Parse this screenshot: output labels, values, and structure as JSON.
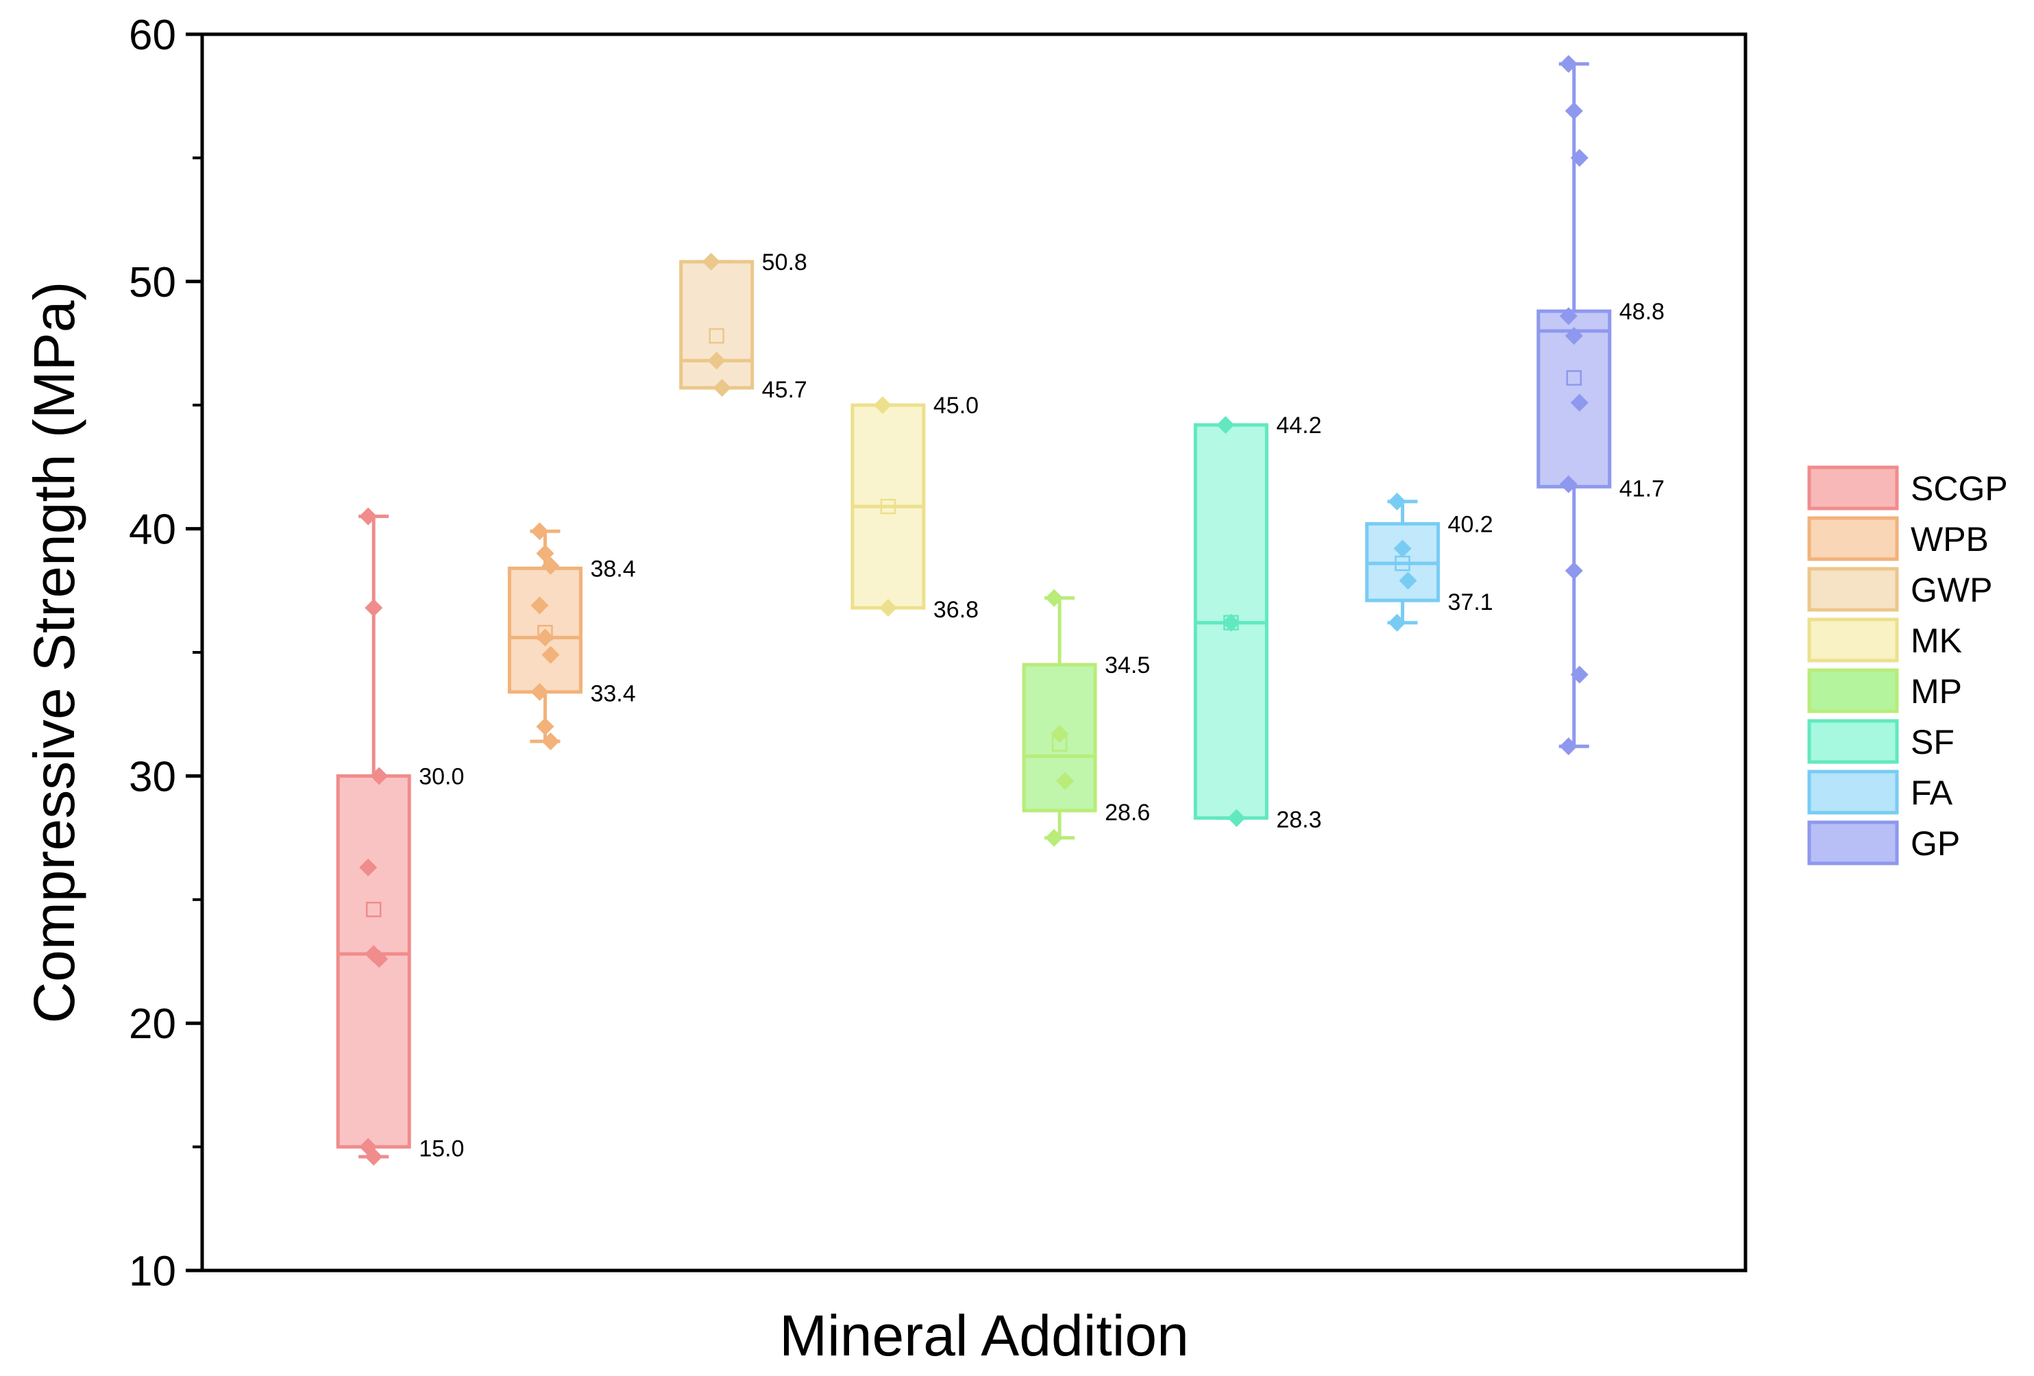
{
  "chart_data": {
    "type": "box",
    "title": "",
    "xlabel": "Mineral Addition",
    "ylabel": "Compressive Strength (MPa)",
    "ylim": [
      10,
      60
    ],
    "yticks": [
      10,
      20,
      30,
      40,
      50,
      60
    ],
    "yticks_minor": [
      15,
      25,
      35,
      45,
      55
    ],
    "grid": false,
    "legend_position": "right",
    "series": [
      {
        "name": "SCGP",
        "color": "#f08c8c",
        "fill": "#f9b8b8",
        "q1": 15.0,
        "q3": 30.0,
        "median": 22.8,
        "mean": 24.6,
        "whisker_low": 14.6,
        "whisker_high": 40.5,
        "q1_label": "15.0",
        "q3_label": "30.0",
        "points": [
          40.5,
          36.8,
          30.0,
          26.3,
          22.8,
          22.6,
          15.0,
          14.6
        ]
      },
      {
        "name": "WPB",
        "color": "#f2b27a",
        "fill": "#f8d6b6",
        "q1": 33.4,
        "q3": 38.4,
        "median": 35.6,
        "mean": 35.8,
        "whisker_low": 31.4,
        "whisker_high": 39.9,
        "q1_label": "33.4",
        "q3_label": "38.4",
        "points": [
          39.9,
          39.0,
          38.5,
          36.9,
          35.6,
          34.9,
          33.4,
          32.0,
          31.4
        ]
      },
      {
        "name": "GWP",
        "color": "#ecc78a",
        "fill": "#f6e2c4",
        "q1": 45.7,
        "q3": 50.8,
        "median": 46.8,
        "mean": 47.8,
        "whisker_low": 45.7,
        "whisker_high": 50.8,
        "q1_label": "45.7",
        "q3_label": "50.8",
        "points": [
          50.8,
          46.8,
          45.7
        ]
      },
      {
        "name": "MK",
        "color": "#ede08c",
        "fill": "#f8f2c4",
        "q1": 36.8,
        "q3": 45.0,
        "median": 40.9,
        "mean": 40.9,
        "whisker_low": 36.8,
        "whisker_high": 45.0,
        "q1_label": "36.8",
        "q3_label": "45.0",
        "points": [
          45.0,
          36.8
        ]
      },
      {
        "name": "MP",
        "color": "#b9ec78",
        "fill": "#b4f49c",
        "q1": 28.6,
        "q3": 34.5,
        "median": 30.8,
        "mean": 31.3,
        "whisker_low": 27.5,
        "whisker_high": 37.2,
        "q1_label": "28.6",
        "q3_label": "34.5",
        "points": [
          37.2,
          31.7,
          29.8,
          27.5
        ]
      },
      {
        "name": "SF",
        "color": "#62e8c0",
        "fill": "#a6f8de",
        "q1": 28.3,
        "q3": 44.2,
        "median": 36.2,
        "mean": 36.2,
        "whisker_low": 28.3,
        "whisker_high": 44.2,
        "q1_label": "28.3",
        "q3_label": "44.2",
        "points": [
          44.2,
          36.2,
          28.3
        ]
      },
      {
        "name": "FA",
        "color": "#78ccf4",
        "fill": "#b6e4fa",
        "q1": 37.1,
        "q3": 40.2,
        "median": 38.6,
        "mean": 38.6,
        "whisker_low": 36.2,
        "whisker_high": 41.1,
        "q1_label": "37.1",
        "q3_label": "40.2",
        "points": [
          41.1,
          39.2,
          37.9,
          36.2
        ]
      },
      {
        "name": "GP",
        "color": "#8e98ee",
        "fill": "#b8bef6",
        "q1": 41.7,
        "q3": 48.8,
        "median": 48.0,
        "mean": 46.1,
        "whisker_low": 31.2,
        "whisker_high": 58.8,
        "q1_label": "41.7",
        "q3_label": "48.8",
        "points": [
          58.8,
          56.9,
          55.0,
          48.6,
          47.8,
          45.1,
          41.8,
          38.3,
          34.1,
          31.2
        ]
      }
    ]
  }
}
